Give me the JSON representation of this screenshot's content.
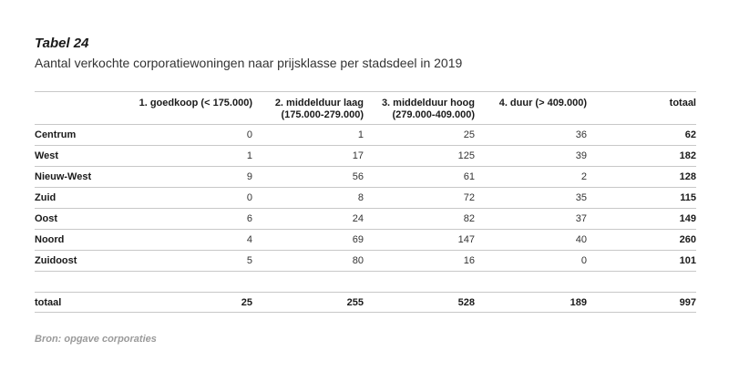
{
  "table_number": "Tabel 24",
  "caption": "Aantal verkochte corporatiewoningen naar prijsklasse per stadsdeel in 2019",
  "columns": {
    "col1_line1": "1. goedkoop (< 175.000)",
    "col2_line1": "2. middelduur laag",
    "col2_line2": "(175.000-279.000)",
    "col3_line1": "3. middelduur hoog",
    "col3_line2": "(279.000-409.000)",
    "col4_line1": "4. duur (> 409.000)",
    "total": "totaal"
  },
  "rows": [
    {
      "district": "Centrum",
      "c1": "0",
      "c2": "1",
      "c3": "25",
      "c4": "36",
      "total": "62"
    },
    {
      "district": "West",
      "c1": "1",
      "c2": "17",
      "c3": "125",
      "c4": "39",
      "total": "182"
    },
    {
      "district": "Nieuw-West",
      "c1": "9",
      "c2": "56",
      "c3": "61",
      "c4": "2",
      "total": "128"
    },
    {
      "district": "Zuid",
      "c1": "0",
      "c2": "8",
      "c3": "72",
      "c4": "35",
      "total": "115"
    },
    {
      "district": "Oost",
      "c1": "6",
      "c2": "24",
      "c3": "82",
      "c4": "37",
      "total": "149"
    },
    {
      "district": "Noord",
      "c1": "4",
      "c2": "69",
      "c3": "147",
      "c4": "40",
      "total": "260"
    },
    {
      "district": "Zuidoost",
      "c1": "5",
      "c2": "80",
      "c3": "16",
      "c4": "0",
      "total": "101"
    }
  ],
  "totals": {
    "label": "totaal",
    "c1": "25",
    "c2": "255",
    "c3": "528",
    "c4": "189",
    "total": "997"
  },
  "source": "Bron: opgave corporaties"
}
